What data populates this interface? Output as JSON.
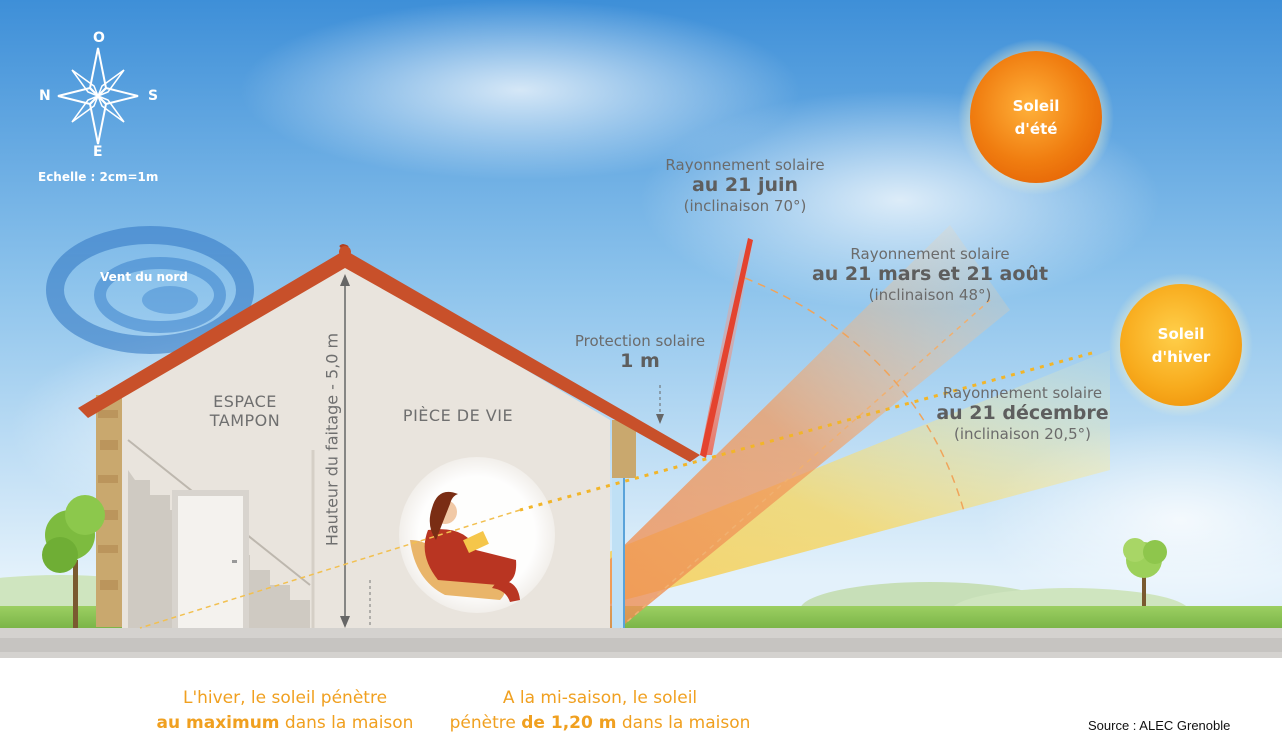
{
  "compass": {
    "north": "O",
    "west": "N",
    "east": "S",
    "south": "E",
    "scale": "Echelle : 2cm=1m"
  },
  "wind": "Vent du nord",
  "rooms": {
    "buffer_line1": "ESPACE",
    "buffer_line2": "TAMPON",
    "living": "PIÈCE DE VIE"
  },
  "ridge_height": "Hauteur du faitage - 5,0 m",
  "protection": {
    "line1": "Protection solaire",
    "line2": "1 m"
  },
  "rays": {
    "june": {
      "line1": "Rayonnement solaire",
      "line2": "au 21 juin",
      "line3": "(inclinaison 70°)"
    },
    "equinox": {
      "line1": "Rayonnement solaire",
      "line2": "au 21 mars et 21 août",
      "line3": "(inclinaison 48°)"
    },
    "december": {
      "line1": "Rayonnement solaire",
      "line2": "au 21 décembre",
      "line3": "(inclinaison 20,5°)"
    }
  },
  "suns": {
    "summer": {
      "line1": "Soleil",
      "line2": "d'été",
      "color": "#f07d10"
    },
    "winter": {
      "line1": "Soleil",
      "line2": "d'hiver",
      "color": "#f5a623"
    }
  },
  "captions": {
    "winter": {
      "line1": "L'hiver, le soleil pénètre",
      "bold": "au maximum",
      "rest": " dans la maison"
    },
    "midseason": {
      "line1": "A la mi-saison, le soleil",
      "pre": "pénètre ",
      "bold": "de 1,20 m",
      "rest": " dans la maison"
    }
  },
  "source": "Source : ALEC Grenoble",
  "colors": {
    "sky_top": "#3d8fd6",
    "ground": "#8fc65a",
    "roof": "#c8502a",
    "wall": "#e9e4dd",
    "caption": "#f0a020"
  }
}
